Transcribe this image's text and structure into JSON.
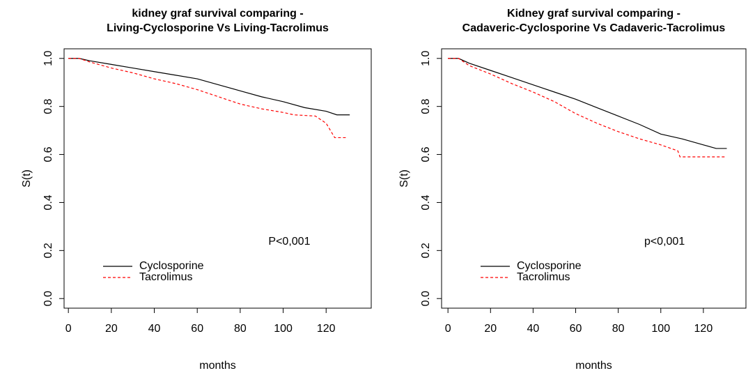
{
  "chart_data": [
    {
      "type": "line",
      "title": [
        "kidney graf survival comparing -",
        "Living-Cyclosporine Vs Living-Tacrolimus"
      ],
      "xlabel": "months",
      "ylabel": "S(t)",
      "annotation": "P<0,001",
      "xlim": [
        -2,
        141
      ],
      "xticks": [
        0,
        20,
        40,
        60,
        80,
        100,
        120
      ],
      "ylim": [
        -0.04,
        1.04
      ],
      "yticks": [
        {
          "value": 0,
          "label": "0.0"
        },
        0.2,
        0.4,
        0.6,
        0.8,
        {
          "value": 1,
          "label": "1.0"
        }
      ],
      "legend": "bottom-left",
      "series": [
        {
          "name": "Cyclosporine",
          "color": "#000000",
          "linestyle": "solid",
          "x": [
            0,
            5,
            10,
            20,
            30,
            40,
            50,
            60,
            70,
            80,
            90,
            100,
            110,
            120,
            125,
            131
          ],
          "values": [
            1.0,
            1.0,
            0.99,
            0.975,
            0.96,
            0.945,
            0.93,
            0.915,
            0.89,
            0.865,
            0.84,
            0.82,
            0.795,
            0.78,
            0.765,
            0.765
          ]
        },
        {
          "name": "Tacrolimus",
          "color": "#ff0000",
          "linestyle": "dashed",
          "x": [
            0,
            5,
            10,
            20,
            30,
            40,
            50,
            60,
            70,
            80,
            90,
            100,
            105,
            115,
            120,
            124,
            130
          ],
          "values": [
            1.0,
            1.0,
            0.985,
            0.96,
            0.94,
            0.915,
            0.895,
            0.87,
            0.84,
            0.81,
            0.79,
            0.775,
            0.765,
            0.76,
            0.73,
            0.67,
            0.67
          ]
        }
      ]
    },
    {
      "type": "line",
      "title": [
        "Kidney graf survival comparing -",
        "Cadaveric-Cyclosporine Vs Cadaveric-Tacrolimus"
      ],
      "xlabel": "months",
      "ylabel": "S(t)",
      "annotation": "p<0,001",
      "xlim": [
        -3,
        140
      ],
      "xticks": [
        0,
        20,
        40,
        60,
        80,
        100,
        120
      ],
      "ylim": [
        -0.04,
        1.04
      ],
      "yticks": [
        {
          "value": 0,
          "label": "0.0"
        },
        0.2,
        0.4,
        0.6,
        0.8,
        {
          "value": 1,
          "label": "1.0"
        }
      ],
      "legend": "bottom-left",
      "series": [
        {
          "name": "Cyclosporine",
          "color": "#000000",
          "linestyle": "solid",
          "x": [
            0,
            5,
            10,
            20,
            30,
            40,
            50,
            60,
            70,
            80,
            90,
            100,
            110,
            120,
            126,
            131
          ],
          "values": [
            1.0,
            1.0,
            0.98,
            0.95,
            0.92,
            0.89,
            0.86,
            0.83,
            0.795,
            0.76,
            0.725,
            0.685,
            0.665,
            0.64,
            0.625,
            0.625
          ]
        },
        {
          "name": "Tacrolimus",
          "color": "#ff0000",
          "linestyle": "dashed",
          "x": [
            0,
            5,
            10,
            20,
            30,
            40,
            50,
            60,
            70,
            80,
            90,
            100,
            108,
            109,
            130
          ],
          "values": [
            1.0,
            1.0,
            0.97,
            0.935,
            0.895,
            0.86,
            0.82,
            0.77,
            0.73,
            0.695,
            0.665,
            0.64,
            0.615,
            0.59,
            0.59
          ]
        }
      ]
    }
  ]
}
